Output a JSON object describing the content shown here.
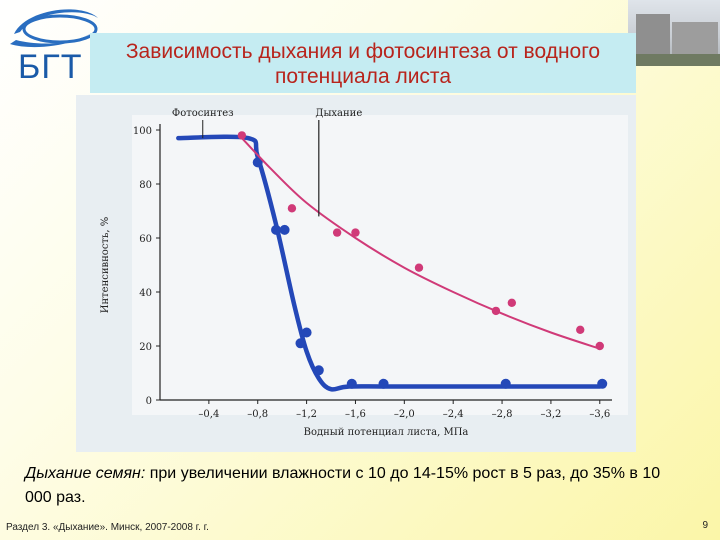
{
  "logo": {
    "text": "БГТ"
  },
  "title": "Зависимость дыхания и фотосинтеза от водного потенциала листа",
  "caption": {
    "emphasis": "Дыхание семян:",
    "text": " при увеличении влажности с 10 до 14-15% рост в 5 раз, до 35% в 10 000 раз."
  },
  "footer": "Раздел 3. «Дыхание». Минск, 2007-2008 г. г.",
  "page_number": "9",
  "chart_data": {
    "type": "line",
    "title": "",
    "xlabel": "Водный потенциал листа,   МПа",
    "ylabel": "Интенсивность, %",
    "xlim": [
      0,
      -3.7
    ],
    "ylim": [
      0,
      100
    ],
    "x_ticks": [
      -0.4,
      -0.8,
      -1.2,
      -1.6,
      -2.0,
      -2.4,
      -2.8,
      -3.2,
      -3.6
    ],
    "x_tick_labels": [
      "–0,4",
      "–0,8",
      "–1,2",
      "–1,6",
      "–2,0",
      "–2,4",
      "–2,8",
      "–3,2",
      "–3,6"
    ],
    "y_ticks": [
      0,
      20,
      40,
      60,
      80,
      100
    ],
    "y_tick_labels": [
      "0",
      "20",
      "40",
      "60",
      "80",
      "100"
    ],
    "series": [
      {
        "name": "Фотосинтез",
        "color": "#2448b8",
        "curve": [
          [
            -0.15,
            97
          ],
          [
            -0.72,
            97
          ],
          [
            -0.8,
            90
          ],
          [
            -0.95,
            65
          ],
          [
            -1.1,
            35
          ],
          [
            -1.2,
            18
          ],
          [
            -1.3,
            8
          ],
          [
            -1.4,
            4
          ],
          [
            -1.55,
            5
          ],
          [
            -2.0,
            5
          ],
          [
            -3.6,
            5
          ]
        ],
        "points": [
          [
            -0.8,
            88
          ],
          [
            -0.95,
            63
          ],
          [
            -1.02,
            63
          ],
          [
            -1.15,
            21
          ],
          [
            -1.2,
            25
          ],
          [
            -1.3,
            11
          ],
          [
            -1.57,
            6
          ],
          [
            -1.83,
            6
          ],
          [
            -2.83,
            6
          ],
          [
            -3.62,
            6
          ]
        ]
      },
      {
        "name": "Дыхание",
        "color": "#d03a78",
        "curve": [
          [
            -0.65,
            98
          ],
          [
            -0.9,
            86
          ],
          [
            -1.2,
            73
          ],
          [
            -1.6,
            60
          ],
          [
            -2.0,
            49
          ],
          [
            -2.4,
            40
          ],
          [
            -2.8,
            32
          ],
          [
            -3.2,
            25
          ],
          [
            -3.6,
            19
          ]
        ],
        "points": [
          [
            -0.67,
            98
          ],
          [
            -1.08,
            71
          ],
          [
            -1.45,
            62
          ],
          [
            -1.6,
            62
          ],
          [
            -2.12,
            49
          ],
          [
            -2.75,
            33
          ],
          [
            -2.88,
            36
          ],
          [
            -3.44,
            26
          ],
          [
            -3.6,
            20
          ]
        ]
      }
    ],
    "annotations": [
      {
        "text": "Фотосинтез",
        "target_series": 0
      },
      {
        "text": "Дыхание",
        "target_series": 1
      }
    ]
  }
}
